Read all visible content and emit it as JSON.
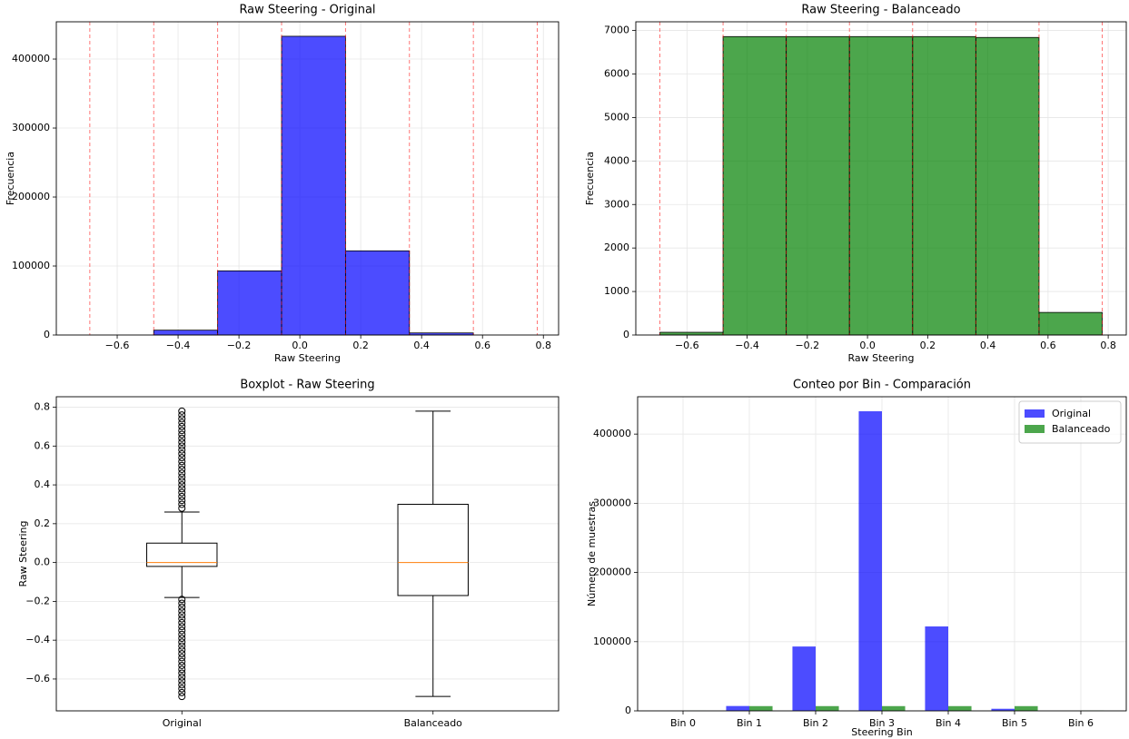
{
  "chart_data": [
    {
      "type": "histogram",
      "title": "Raw Steering - Original",
      "xlabel": "Raw Steering",
      "ylabel": "Frecuencia",
      "bins": [
        -0.69,
        -0.48,
        -0.27,
        -0.06,
        0.15,
        0.36,
        0.57,
        0.78
      ],
      "values": [
        0,
        7000,
        93000,
        433000,
        122000,
        3000,
        0
      ],
      "color": "#0000ff",
      "alpha": 0.7,
      "edgecolor": "#000000",
      "edge_line_color": "#ff0000",
      "xlim": [
        -0.8,
        0.85
      ],
      "xticks": [
        {
          "value": -0.6,
          "label": "−0.6"
        },
        {
          "value": -0.4,
          "label": "−0.4"
        },
        {
          "value": -0.2,
          "label": "−0.2"
        },
        {
          "value": 0,
          "label": "0.0"
        },
        0.2,
        0.4,
        0.6,
        0.8
      ],
      "ylim": [
        0,
        454000
      ],
      "yticks": [
        0,
        100000,
        200000,
        300000,
        400000
      ],
      "grid": true
    },
    {
      "type": "histogram",
      "title": "Raw Steering - Balanceado",
      "xlabel": "Raw Steering",
      "ylabel": "Frecuencia",
      "bins": [
        -0.69,
        -0.48,
        -0.27,
        -0.06,
        0.15,
        0.36,
        0.57,
        0.78
      ],
      "values": [
        62,
        6860,
        6860,
        6860,
        6860,
        6840,
        519
      ],
      "color": "#008000",
      "alpha": 0.7,
      "edgecolor": "#000000",
      "edge_line_color": "#ff0000",
      "xlim": [
        -0.77,
        0.86
      ],
      "xticks": [
        {
          "value": -0.6,
          "label": "−0.6"
        },
        {
          "value": -0.4,
          "label": "−0.4"
        },
        {
          "value": -0.2,
          "label": "−0.2"
        },
        {
          "value": 0,
          "label": "0.0"
        },
        0.2,
        0.4,
        0.6,
        0.8
      ],
      "ylim": [
        0,
        7200
      ],
      "yticks": [
        0,
        1000,
        2000,
        3000,
        4000,
        5000,
        6000,
        7000
      ],
      "grid": true
    },
    {
      "type": "box",
      "title": "Boxplot - Raw Steering",
      "ylabel": "Raw Steering",
      "categories": [
        "Original",
        "Balanceado"
      ],
      "boxes": [
        {
          "whislo": -0.18,
          "q1": -0.02,
          "med": 0.0,
          "q3": 0.1,
          "whishi": 0.26,
          "outliers": [
            0.28,
            0.3,
            0.32,
            0.34,
            0.36,
            0.38,
            0.4,
            0.42,
            0.44,
            0.46,
            0.48,
            0.5,
            0.52,
            0.54,
            0.56,
            0.58,
            0.6,
            0.62,
            0.64,
            0.66,
            0.68,
            0.7,
            0.72,
            0.74,
            0.76,
            0.78,
            -0.19,
            -0.21,
            -0.23,
            -0.25,
            -0.27,
            -0.29,
            -0.31,
            -0.33,
            -0.35,
            -0.37,
            -0.39,
            -0.41,
            -0.43,
            -0.45,
            -0.47,
            -0.49,
            -0.51,
            -0.53,
            -0.55,
            -0.57,
            -0.59,
            -0.61,
            -0.63,
            -0.65,
            -0.67,
            -0.69
          ]
        },
        {
          "whislo": -0.69,
          "q1": -0.17,
          "med": 0.0,
          "q3": 0.3,
          "whishi": 0.78
        }
      ],
      "median_color": "#ff7f0e",
      "ylim": [
        -0.764,
        0.854
      ],
      "yticks": [
        {
          "value": -0.6,
          "label": "−0.6"
        },
        {
          "value": -0.4,
          "label": "−0.4"
        },
        {
          "value": -0.2,
          "label": "−0.2"
        },
        {
          "value": 0,
          "label": "0.0"
        },
        0.2,
        0.4,
        0.6,
        0.8
      ],
      "grid": "y"
    },
    {
      "type": "bar",
      "title": "Conteo por Bin - Comparación",
      "xlabel": "Steering Bin",
      "ylabel": "Número de muestras",
      "categories": [
        "Bin 0",
        "Bin 1",
        "Bin 2",
        "Bin 3",
        "Bin 4",
        "Bin 5",
        "Bin 6"
      ],
      "series": [
        {
          "name": "Original",
          "color": "#0000ff",
          "values": [
            0,
            7000,
            93000,
            433000,
            122000,
            3000,
            0
          ]
        },
        {
          "name": "Balanceado",
          "color": "#008000",
          "values": [
            62,
            6860,
            6860,
            6860,
            6860,
            6840,
            519
          ]
        }
      ],
      "alpha": 0.7,
      "legend": "upper right",
      "ylim": [
        0,
        454000
      ],
      "yticks": [
        0,
        100000,
        200000,
        300000,
        400000
      ],
      "grid": true
    }
  ]
}
